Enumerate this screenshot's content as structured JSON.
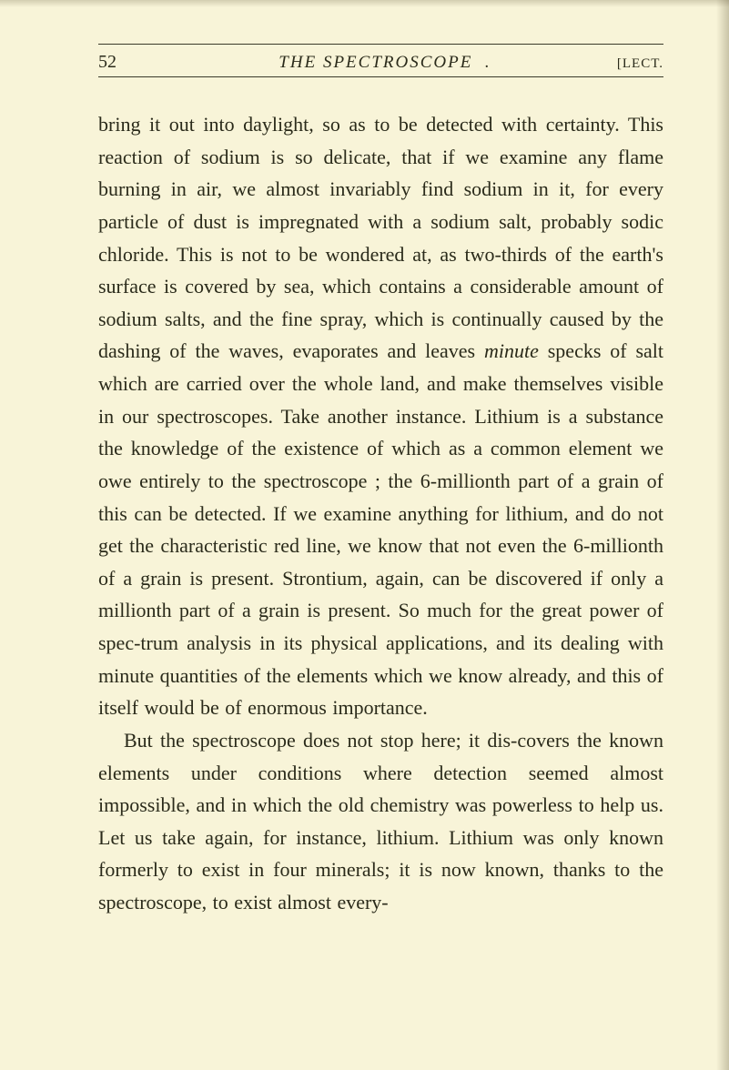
{
  "page": {
    "number": "52",
    "title": "THE SPECTROSCOPE",
    "section_suffix": ".",
    "section_label": "[LECT.",
    "colors": {
      "background": "#f8f4d8",
      "text": "#2a2a1a",
      "rule": "#3a3a2a"
    },
    "typography": {
      "body_fontsize": 22,
      "body_lineheight": 1.62,
      "header_fontsize": 19,
      "pagenum_fontsize": 20,
      "section_fontsize": 15
    }
  },
  "paragraphs": {
    "p1a": "bring it out into daylight, so as to be detected with certainty. This reaction of sodium is so delicate, that if we examine any flame burning in air, we almost invariably find sodium in it, for every particle of dust is impregnated with a sodium salt, probably sodic chloride. This is not to be wondered at, as two-thirds of the earth's surface is covered by sea, which contains a considerable amount of sodium salts, and the fine spray, which is continually caused by the dashing of the waves, evaporates and leaves ",
    "p1_italic": "minute",
    "p1b": " specks of salt which are carried over the whole land, and make themselves visible in our spectroscopes. Take another instance. Lithium is a substance the knowledge of the existence of which as a common element we owe entirely to the spectroscope ; the 6-millionth part of a grain of this can be detected. If we examine anything for lithium, and do not get the characteristic red line, we know that not even the 6-millionth of a grain is present. Strontium, again, can be discovered if only a millionth part of a grain is present. So much for the great power of spec-trum analysis in its physical applications, and its dealing with minute quantities of the elements which we know already, and this of itself would be of enormous importance.",
    "p2": "But the spectroscope does not stop here; it dis-covers the known elements under conditions where detection seemed almost impossible, and in which the old chemistry was powerless to help us. Let us take again, for instance, lithium. Lithium was only known formerly to exist in four minerals; it is now known, thanks to the spectroscope, to exist almost every-"
  }
}
